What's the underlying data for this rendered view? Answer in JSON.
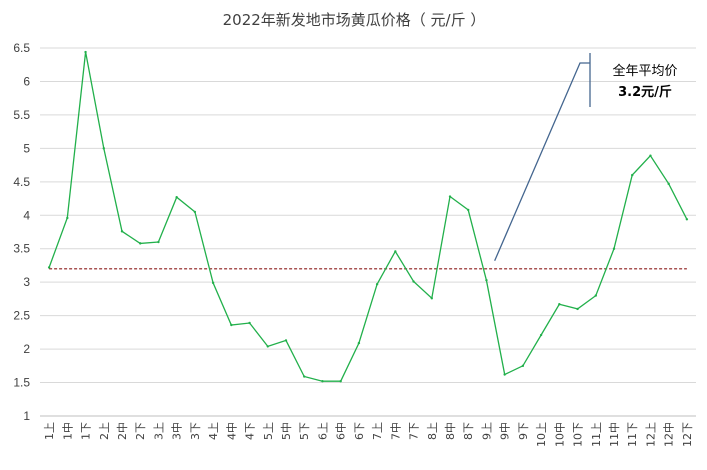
{
  "chart_data": {
    "type": "line",
    "title": "2022年新发地市场黄瓜价格（ 元/斤 ）",
    "xlabel": "",
    "ylabel": "",
    "ylim": [
      1,
      6.5
    ],
    "yticks": [
      "1",
      "1.5",
      "2",
      "2.5",
      "3",
      "3.5",
      "4",
      "4.5",
      "5",
      "5.5",
      "6",
      "6.5"
    ],
    "grid": true,
    "categories": [
      "1上",
      "1中",
      "1下",
      "2上",
      "2中",
      "2下",
      "3上",
      "3中",
      "3下",
      "4上",
      "4中",
      "4下",
      "5上",
      "5中",
      "5下",
      "6上",
      "6中",
      "6下",
      "7上",
      "7中",
      "7下",
      "8上",
      "8中",
      "8下",
      "9上",
      "9中",
      "9下",
      "10上",
      "10中",
      "10下",
      "11上",
      "11中",
      "11下",
      "12上",
      "12中",
      "12下"
    ],
    "series": [
      {
        "values": [
          3.22,
          3.96,
          6.44,
          5.0,
          3.76,
          3.58,
          3.6,
          4.27,
          4.05,
          2.99,
          2.36,
          2.39,
          2.04,
          2.13,
          1.59,
          1.52,
          1.52,
          2.09,
          2.97,
          3.46,
          3.01,
          2.76,
          4.28,
          4.08,
          3.03,
          1.62,
          1.75,
          2.21,
          2.67,
          2.6,
          2.8,
          3.5,
          4.6,
          4.89,
          4.47,
          3.94
        ],
        "color": "#22b04b"
      }
    ],
    "reference_line": {
      "value": 3.2,
      "color": "#8b1a1a",
      "style": "dashed"
    },
    "annotation": {
      "line1": "全年平均价",
      "line2": "3.2元/斤",
      "pointer_color": "#44668f"
    }
  }
}
